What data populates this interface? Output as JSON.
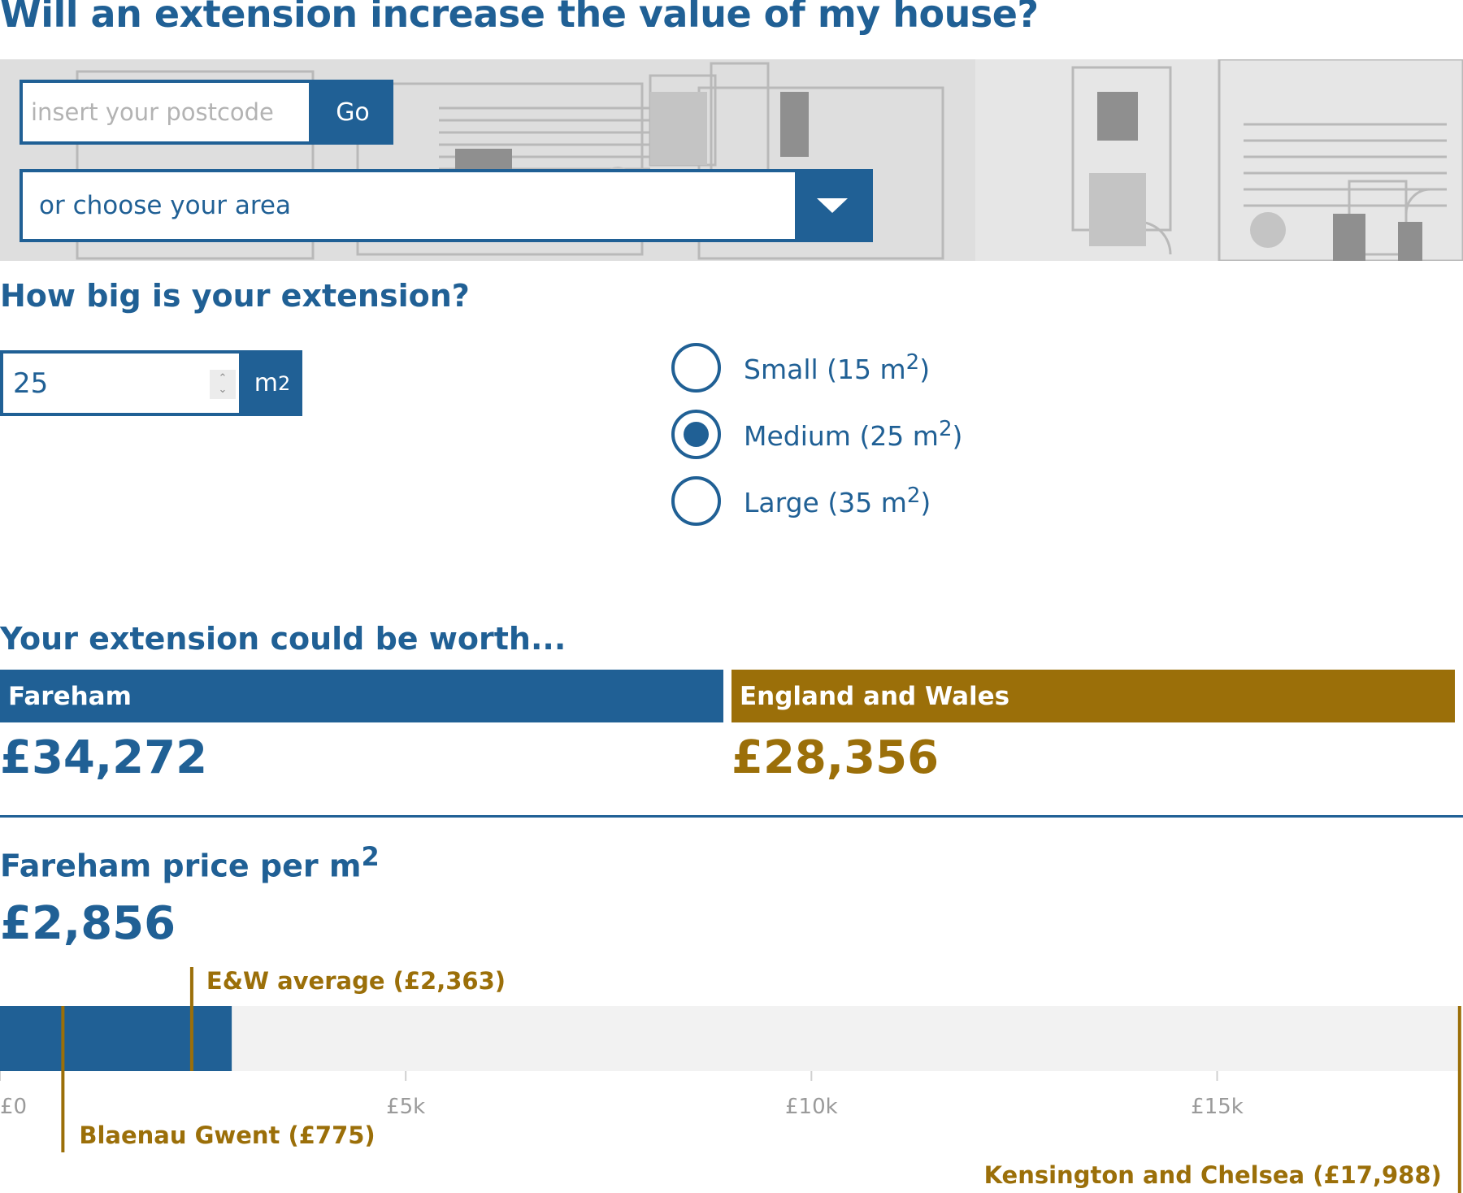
{
  "title": "Will an extension increase the value of my house?",
  "postcode": {
    "placeholder": "insert your postcode",
    "go_label": "Go"
  },
  "area_select": {
    "placeholder": "or choose your area"
  },
  "size": {
    "heading": "How big is your extension?",
    "value": "25",
    "unit": "m",
    "unit_sup": "2",
    "options": [
      {
        "label": "Small (15 m",
        "sup": "2",
        "close": ")",
        "selected": false
      },
      {
        "label": "Medium (25 m",
        "sup": "2",
        "close": ")",
        "selected": true
      },
      {
        "label": "Large (35 m",
        "sup": "2",
        "close": ")",
        "selected": false
      }
    ]
  },
  "worth": {
    "heading": "Your extension could be worth...",
    "local_name": "Fareham",
    "local_value": "£34,272",
    "national_name": "England and Wales",
    "national_value": "£28,356"
  },
  "price_per_m2": {
    "heading": "Fareham price per m",
    "heading_sup": "2",
    "value": "£2,856"
  },
  "colors": {
    "primary": "#206095",
    "accent": "#9b6f09",
    "track": "#f2f2f2"
  },
  "chart_data": {
    "type": "bar",
    "orientation": "horizontal",
    "xlim": [
      0,
      18000
    ],
    "x_ticks": [
      {
        "value": 0,
        "label": "£0"
      },
      {
        "value": 5000,
        "label": "£5k"
      },
      {
        "value": 10000,
        "label": "£10k"
      },
      {
        "value": 15000,
        "label": "£15k"
      }
    ],
    "bar": {
      "value": 2856
    },
    "markers": [
      {
        "label": "E&W average (£2,363)",
        "value": 2363,
        "label_position": "above"
      },
      {
        "label": "Blaenau Gwent (£775)",
        "value": 775,
        "label_position": "below"
      },
      {
        "label": "Kensington and Chelsea (£17,988)",
        "value": 17988,
        "label_position": "below-far"
      }
    ]
  }
}
